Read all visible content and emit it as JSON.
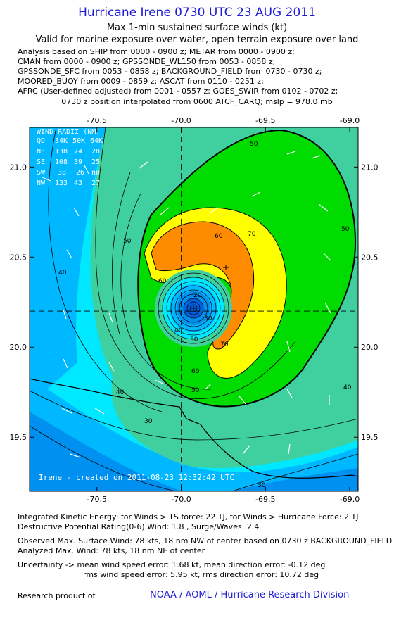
{
  "header": {
    "title": "Hurricane Irene 0730 UTC 23 AUG 2011",
    "subtitle": "Max 1-min sustained surface winds (kt)",
    "valid_line": "Valid for marine exposure over water, open terrain exposure over land",
    "sources": [
      "Analysis based on SHIP from 0000 - 0900 z; METAR from 0000 - 0900 z;",
      "CMAN from 0000 - 0900 z; GPSSONDE_WL150 from 0053 - 0858 z;",
      "GPSSONDE_SFC from 0053 - 0858 z; BACKGROUND_FIELD from 0730 - 0730 z;",
      "MOORED_BUOY from 0009 - 0859 z; ASCAT from 0110 - 0251 z;",
      "AFRC (User-defined adjusted) from 0001 - 0557 z; GOES_SWIR from 0102 - 0702 z;"
    ],
    "position_line": "0730 z position interpolated from 0600 ATCF_CARQ; mslp = 978.0 mb"
  },
  "chart_data": {
    "type": "contour",
    "center": {
      "lon": -70.0,
      "lat": 20.2
    },
    "xlim": [
      -70.9,
      -68.95
    ],
    "ylim": [
      19.2,
      21.22
    ],
    "x_ticks": [
      "-70.5",
      "-70.0",
      "-69.5",
      "-69.0"
    ],
    "x_tick_values": [
      -70.5,
      -70.0,
      -69.5,
      -69.0
    ],
    "y_ticks": [
      "21.0",
      "20.5",
      "20.0",
      "19.5"
    ],
    "y_tick_values": [
      21.0,
      20.5,
      20.0,
      19.5
    ],
    "contour_labels": [
      "50",
      "60",
      "70",
      "50",
      "40",
      "60",
      "70",
      "20",
      "30",
      "40",
      "50",
      "40",
      "50",
      "60",
      "50",
      "40",
      "30",
      "30"
    ],
    "wind_radii": {
      "title": "WIND RADII (NM)",
      "header": [
        "QD",
        "34K",
        "50K",
        "64K"
      ],
      "rows": [
        [
          "NE",
          "138",
          "74",
          "28"
        ],
        [
          "SE",
          "108",
          "39",
          "25"
        ],
        [
          "SW",
          "38",
          "26",
          "no"
        ],
        [
          "NW",
          "133",
          "43",
          "27"
        ]
      ]
    },
    "credit": "Irene - created on 2011-08-23 12:32:42 UTC",
    "colors": {
      "ge50": "#00dc00",
      "ge60": "#ffff00",
      "ge70": "#ff8c00",
      "lt50_a": "#40d0a0",
      "lt50_b": "#00e8ff",
      "lt40": "#00b8ff",
      "lt30": "#0090f0",
      "land": "#000000"
    }
  },
  "footer": {
    "ike": "Integrated Kinetic Energy:  for Winds > TS force: 22 TJ,  for Winds > Hurricane Force: 2 TJ",
    "dpr": "Destructive Potential Rating(0-6)   Wind: 1.8 , Surge/Waves: 2.4",
    "obs_max": "Observed Max. Surface Wind: 78 kts, 18 nm NW of center based on 0730 z BACKGROUND_FIELD",
    "ana_max": "Analyzed Max. Wind: 78 kts, 18 nm NE of center",
    "unc1": "Uncertainty -> mean wind speed error: 1.68 kt,   mean direction error:  -0.12 deg",
    "unc2": "rms wind speed error: 5.95 kt,   rms direction error: 10.72 deg",
    "research": "Research product of",
    "org": "NOAA / AOML / Hurricane Research Division"
  }
}
